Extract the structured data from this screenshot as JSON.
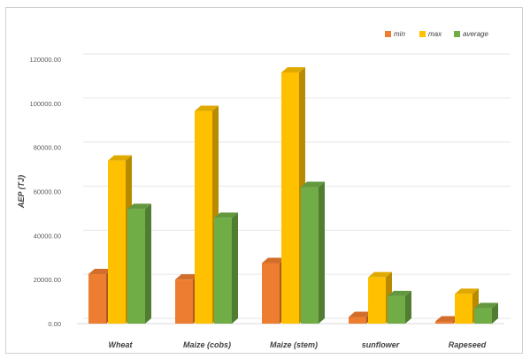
{
  "chart_data": {
    "type": "bar",
    "title": "",
    "xlabel": "",
    "ylabel": "AEP (TJ)",
    "categories": [
      "Wheat",
      "Maize (cobs)",
      "Maize (stem)",
      "sunflower",
      "Rapeseed"
    ],
    "series": [
      {
        "name": "min",
        "color": "#ED7D31",
        "values": [
          22500,
          20000,
          27500,
          3000,
          1000
        ]
      },
      {
        "name": "max",
        "color": "#FFC000",
        "values": [
          74000,
          96500,
          114000,
          21000,
          13500
        ]
      },
      {
        "name": "average",
        "color": "#70AD47",
        "values": [
          52000,
          48000,
          62000,
          12500,
          7000
        ]
      }
    ],
    "ylim": [
      0,
      120000
    ],
    "yticks": [
      "0.00",
      "20000.00",
      "40000.00",
      "60000.00",
      "80000.00",
      "100000.00",
      "120000.00"
    ],
    "grid": true,
    "legend": "top-right"
  }
}
